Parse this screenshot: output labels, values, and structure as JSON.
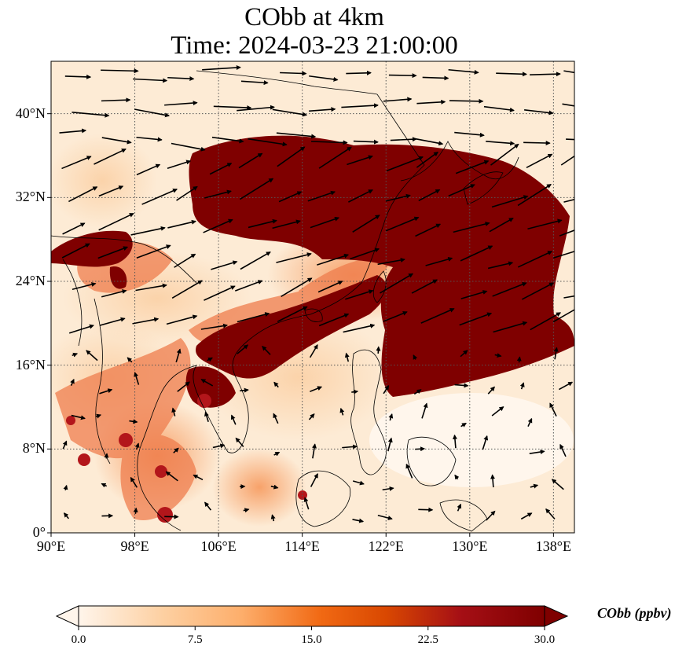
{
  "title_line1": "CObb at 4km",
  "title_line2": "Time: 2024-03-23 21:00:00",
  "map": {
    "lon_range": [
      90,
      140
    ],
    "lat_range": [
      0,
      45
    ],
    "lat_ticks": [
      {
        "value": 0,
        "label": "0°"
      },
      {
        "value": 8,
        "label": "8°N"
      },
      {
        "value": 16,
        "label": "16°N"
      },
      {
        "value": 24,
        "label": "24°N"
      },
      {
        "value": 32,
        "label": "32°N"
      },
      {
        "value": 40,
        "label": "40°N"
      }
    ],
    "lon_ticks": [
      {
        "value": 90,
        "label": "90°E"
      },
      {
        "value": 98,
        "label": "98°E"
      },
      {
        "value": 106,
        "label": "106°E"
      },
      {
        "value": 114,
        "label": "114°E"
      },
      {
        "value": 122,
        "label": "122°E"
      },
      {
        "value": 130,
        "label": "130°E"
      },
      {
        "value": 138,
        "label": "138°E"
      }
    ],
    "gridlines": true,
    "field_colors": {
      "low": "#fff5eb",
      "mid": "#f4a06a",
      "high": "#7f0000"
    }
  },
  "colorbar": {
    "label": "CObb (ppbv)",
    "min": 0.0,
    "max": 30.0,
    "ticks": [
      "0.0",
      "7.5",
      "15.0",
      "22.5",
      "30.0"
    ],
    "extend": "both",
    "colors": [
      "#fff5eb",
      "#fdd0a2",
      "#fdae6b",
      "#f16913",
      "#d94801",
      "#a50f15",
      "#7f0000"
    ]
  }
}
